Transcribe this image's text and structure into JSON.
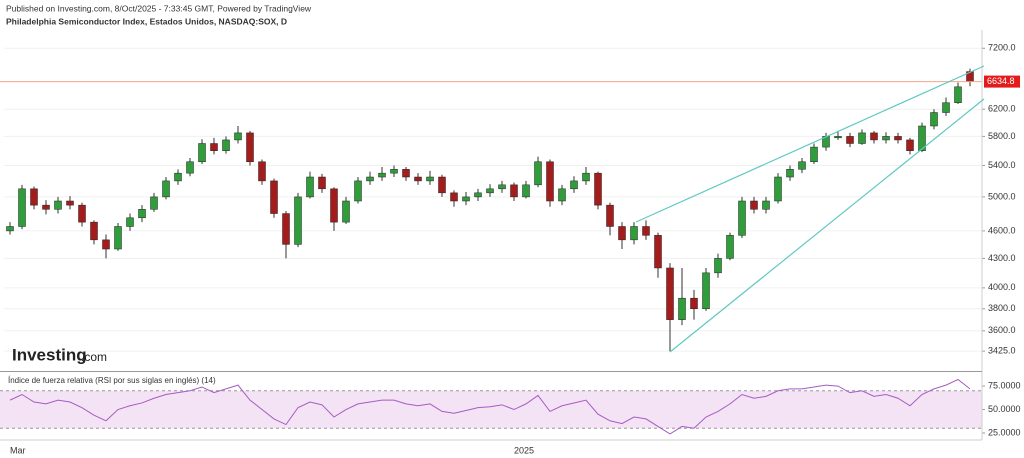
{
  "logo": {
    "name": "Investing",
    "suffix": ".com"
  },
  "chart_data": [
    {
      "type": "candlestick",
      "subtitle": "Published on Investing.com, 8/Oct/2025 - 7:33:45 GMT, Powered by TradingView",
      "title": "Philadelphia Semiconductor Index, Estados Unidos, NASDAQ:SOX, D",
      "categories": [
        "Mar",
        null,
        null,
        null,
        null,
        null,
        null,
        null,
        null,
        null,
        null,
        null,
        null,
        null,
        null,
        null,
        null,
        null,
        null,
        null,
        null,
        null,
        null,
        null,
        null,
        null,
        null,
        null,
        null,
        null,
        null,
        null,
        null,
        null,
        null,
        null,
        null,
        null,
        null,
        null,
        null,
        null,
        "2025",
        null,
        null,
        null,
        null,
        null,
        null,
        null,
        null,
        null,
        null,
        null,
        null,
        null,
        null,
        null,
        null,
        null,
        null,
        null,
        null,
        null,
        null,
        null,
        null,
        null,
        null,
        null,
        null,
        null,
        null,
        null,
        null,
        null,
        null,
        null,
        null,
        null,
        null
      ],
      "open": [
        4600,
        4650,
        5100,
        4900,
        4850,
        4950,
        4900,
        4700,
        4500,
        4400,
        4650,
        4750,
        4850,
        5000,
        5200,
        5300,
        5450,
        5700,
        5600,
        5750,
        5850,
        5450,
        5200,
        4800,
        4450,
        5000,
        5250,
        5100,
        4700,
        4950,
        5200,
        5250,
        5300,
        5350,
        5250,
        5200,
        5250,
        5050,
        4950,
        5000,
        5050,
        5100,
        5150,
        5000,
        5150,
        5450,
        4950,
        5100,
        5200,
        5300,
        4900,
        4650,
        4500,
        4650,
        4550,
        4200,
        3700,
        3900,
        3800,
        4150,
        4300,
        4550,
        4950,
        4850,
        4950,
        5250,
        5350,
        5450,
        5650,
        5780,
        5800,
        5700,
        5850,
        5750,
        5800,
        5750,
        5600,
        5950,
        6150,
        6300,
        6800
      ],
      "high": [
        4700,
        5150,
        5130,
        4960,
        5000,
        5010,
        4930,
        4720,
        4560,
        4690,
        4800,
        4900,
        5050,
        5250,
        5350,
        5500,
        5760,
        5780,
        5800,
        5950,
        5880,
        5480,
        5230,
        4830,
        5050,
        5320,
        5290,
        5120,
        5000,
        5250,
        5320,
        5380,
        5400,
        5380,
        5300,
        5330,
        5280,
        5080,
        5060,
        5100,
        5160,
        5200,
        5180,
        5200,
        5520,
        5480,
        5150,
        5260,
        5380,
        5320,
        4930,
        4700,
        4700,
        4720,
        4580,
        4250,
        4200,
        3980,
        4200,
        4350,
        4580,
        5000,
        5000,
        5000,
        5300,
        5400,
        5500,
        5700,
        5850,
        5880,
        5850,
        5900,
        5880,
        5860,
        5850,
        5780,
        6000,
        6200,
        6380,
        6620,
        6850
      ],
      "low": [
        4560,
        4620,
        4850,
        4790,
        4800,
        4850,
        4650,
        4450,
        4300,
        4380,
        4600,
        4700,
        4820,
        4970,
        5150,
        5260,
        5420,
        5550,
        5560,
        5700,
        5400,
        5150,
        4750,
        4300,
        4420,
        4980,
        5050,
        4600,
        4680,
        4920,
        5150,
        5200,
        5250,
        5200,
        5150,
        5150,
        5000,
        4880,
        4900,
        4950,
        5000,
        5050,
        4950,
        4980,
        5120,
        4880,
        4900,
        5050,
        5150,
        4850,
        4550,
        4400,
        4450,
        4500,
        4100,
        3425,
        3650,
        3700,
        3780,
        4100,
        4280,
        4520,
        4800,
        4800,
        4920,
        5200,
        5300,
        5420,
        5600,
        5750,
        5650,
        5680,
        5700,
        5700,
        5700,
        5550,
        5580,
        5900,
        6100,
        6280,
        6560
      ],
      "close": [
        4650,
        5100,
        4900,
        4850,
        4950,
        4900,
        4700,
        4500,
        4400,
        4650,
        4750,
        4850,
        5000,
        5200,
        5300,
        5450,
        5700,
        5600,
        5750,
        5850,
        5450,
        5200,
        4800,
        4450,
        5000,
        5250,
        5100,
        4700,
        4950,
        5200,
        5250,
        5300,
        5350,
        5250,
        5200,
        5250,
        5050,
        4950,
        5000,
        5050,
        5100,
        5150,
        5000,
        5150,
        5450,
        4950,
        5100,
        5200,
        5300,
        4900,
        4650,
        4500,
        4650,
        4550,
        4200,
        3700,
        3900,
        3800,
        4150,
        4300,
        4550,
        4950,
        4850,
        4950,
        5250,
        5350,
        5450,
        5650,
        5800,
        5800,
        5700,
        5850,
        5750,
        5800,
        5750,
        5600,
        5950,
        6150,
        6300,
        6550,
        6634.8
      ],
      "up_color": "#2f9e3a",
      "down_color": "#a51c1c",
      "last_color": "#e31b1b",
      "log_scale": true,
      "grid": true,
      "ylim": [
        3270,
        7530
      ],
      "yticks": [
        {
          "value": 7200,
          "label": "7200.0"
        },
        {
          "value": 6200,
          "label": "6200.0"
        },
        {
          "value": 5800,
          "label": "5800.0"
        },
        {
          "value": 5400,
          "label": "5400.0"
        },
        {
          "value": 5000,
          "label": "5000.0"
        },
        {
          "value": 4600,
          "label": "4600.0"
        },
        {
          "value": 4300,
          "label": "4300.0"
        },
        {
          "value": 4000,
          "label": "4000.0"
        },
        {
          "value": 3800,
          "label": "3800.0"
        },
        {
          "value": 3600,
          "label": "3600.0"
        },
        {
          "value": 3425,
          "label": "3425.0"
        }
      ]
    },
    {
      "type": "line",
      "title": "Índice de fuerza relativa (RSI por sus siglas en inglés) (14)",
      "values": [
        60,
        66,
        58,
        56,
        60,
        58,
        52,
        44,
        38,
        50,
        54,
        57,
        62,
        66,
        68,
        70,
        74,
        68,
        72,
        76,
        60,
        50,
        40,
        34,
        52,
        58,
        55,
        42,
        50,
        56,
        58,
        60,
        60,
        56,
        54,
        56,
        48,
        46,
        49,
        52,
        53,
        55,
        50,
        56,
        65,
        48,
        54,
        57,
        60,
        45,
        38,
        35,
        42,
        40,
        32,
        24,
        32,
        30,
        42,
        48,
        56,
        66,
        62,
        64,
        70,
        72,
        72,
        74,
        76,
        75,
        68,
        70,
        64,
        66,
        62,
        54,
        66,
        72,
        76,
        82,
        72
      ],
      "color": "#a85bc4",
      "band": [
        30,
        70
      ],
      "band_color": "#f3e3f5",
      "ylim": [
        17.5,
        90
      ],
      "yticks": [
        {
          "value": 75,
          "label": "75.0000"
        },
        {
          "value": 50,
          "label": "50.0000"
        },
        {
          "value": 25,
          "label": "25.0000"
        }
      ]
    }
  ]
}
